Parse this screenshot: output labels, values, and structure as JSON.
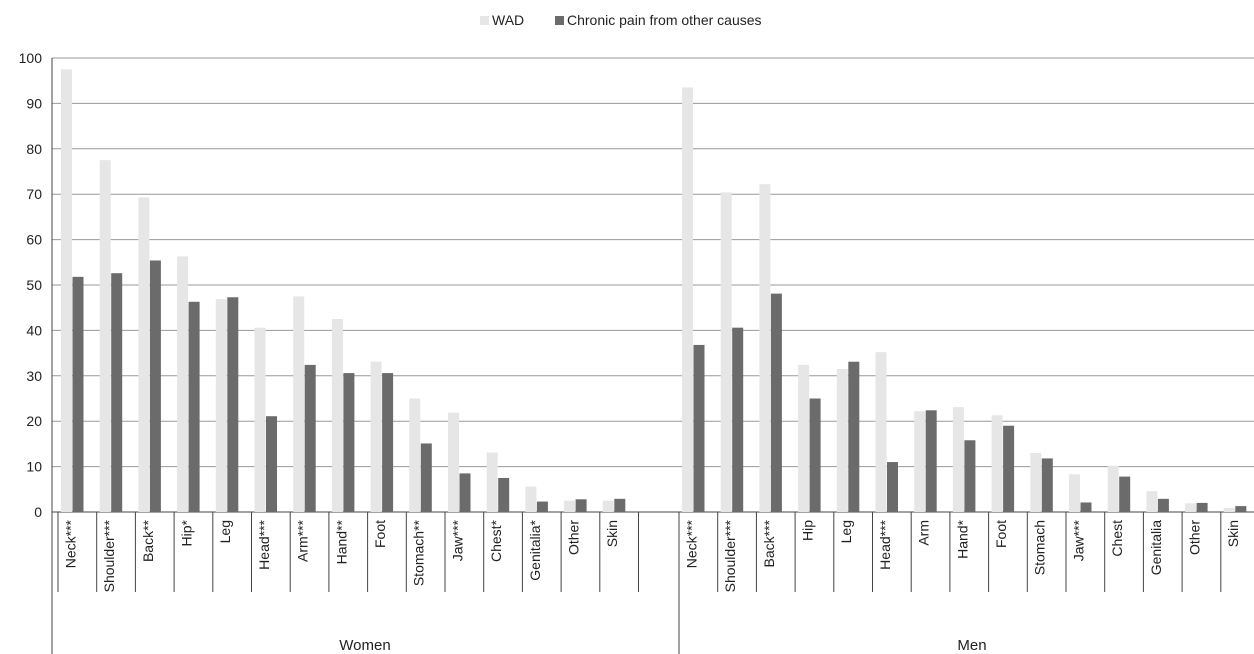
{
  "chart_data": {
    "type": "bar",
    "title": "",
    "xlabel": "",
    "ylabel": "",
    "ylim": [
      0,
      100
    ],
    "yticks": [
      0,
      10,
      20,
      30,
      40,
      50,
      60,
      70,
      80,
      90,
      100
    ],
    "grid": true,
    "legend_position": "top-center",
    "colors": {
      "WAD": "#e6e6e6",
      "Chronic pain from other causes": "#6b6b6b"
    },
    "groups": [
      {
        "name": "Women",
        "categories": [
          "Neck***",
          "Shoulder***",
          "Back**",
          "Hip*",
          "Leg",
          "Head***",
          "Arm***",
          "Hand**",
          "Foot",
          "Stomach**",
          "Jaw***",
          "Chest*",
          "Genitalia*",
          "Other",
          "Skin"
        ],
        "series": [
          {
            "name": "WAD",
            "values": [
              97.5,
              77.5,
              69.3,
              56.3,
              46.9,
              40.6,
              47.5,
              42.5,
              33.1,
              25.0,
              21.9,
              13.1,
              5.6,
              2.5,
              2.5
            ]
          },
          {
            "name": "Chronic pain from other causes",
            "values": [
              51.8,
              52.6,
              55.4,
              46.3,
              47.3,
              21.1,
              32.4,
              30.6,
              30.6,
              15.1,
              8.5,
              7.5,
              2.3,
              2.8,
              2.9
            ]
          }
        ]
      },
      {
        "name": "Men",
        "categories": [
          "Neck***",
          "Shoulder***",
          "Back***",
          "Hip",
          "Leg",
          "Head***",
          "Arm",
          "Hand*",
          "Foot",
          "Stomach",
          "Jaw***",
          "Chest",
          "Genitalia",
          "Other",
          "Skin"
        ],
        "series": [
          {
            "name": "WAD",
            "values": [
              93.5,
              70.4,
              72.2,
              32.4,
              31.5,
              35.2,
              22.2,
              23.1,
              21.3,
              13.0,
              8.3,
              10.2,
              4.6,
              1.9,
              0.9
            ]
          },
          {
            "name": "Chronic pain from other causes",
            "values": [
              36.8,
              40.6,
              48.1,
              25.0,
              33.1,
              11.0,
              22.4,
              15.8,
              19.0,
              11.8,
              2.1,
              7.8,
              2.9,
              2.0,
              1.3
            ]
          }
        ]
      }
    ]
  }
}
